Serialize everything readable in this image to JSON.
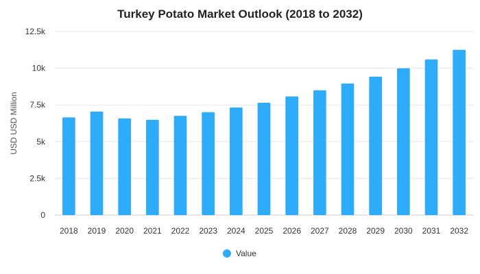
{
  "chart_data": {
    "type": "bar",
    "title": "Turkey Potato Market Outlook (2018 to 2032)",
    "xlabel": "",
    "ylabel": "USD USD Million",
    "categories": [
      "2018",
      "2019",
      "2020",
      "2021",
      "2022",
      "2023",
      "2024",
      "2025",
      "2026",
      "2027",
      "2028",
      "2029",
      "2030",
      "2031",
      "2032"
    ],
    "series": [
      {
        "name": "Value",
        "color": "#2eabf9",
        "values": [
          6650,
          7050,
          6580,
          6490,
          6760,
          7010,
          7330,
          7650,
          8080,
          8500,
          8960,
          9430,
          10000,
          10600,
          11250
        ]
      }
    ],
    "ylim": [
      0,
      12500
    ],
    "yticks": [
      0,
      2500,
      5000,
      7500,
      10000,
      12500
    ],
    "ytick_labels": [
      "0",
      "2.5k",
      "5k",
      "7.5k",
      "10k",
      "12.5k"
    ],
    "grid": true,
    "legend_position": "bottom-center"
  }
}
